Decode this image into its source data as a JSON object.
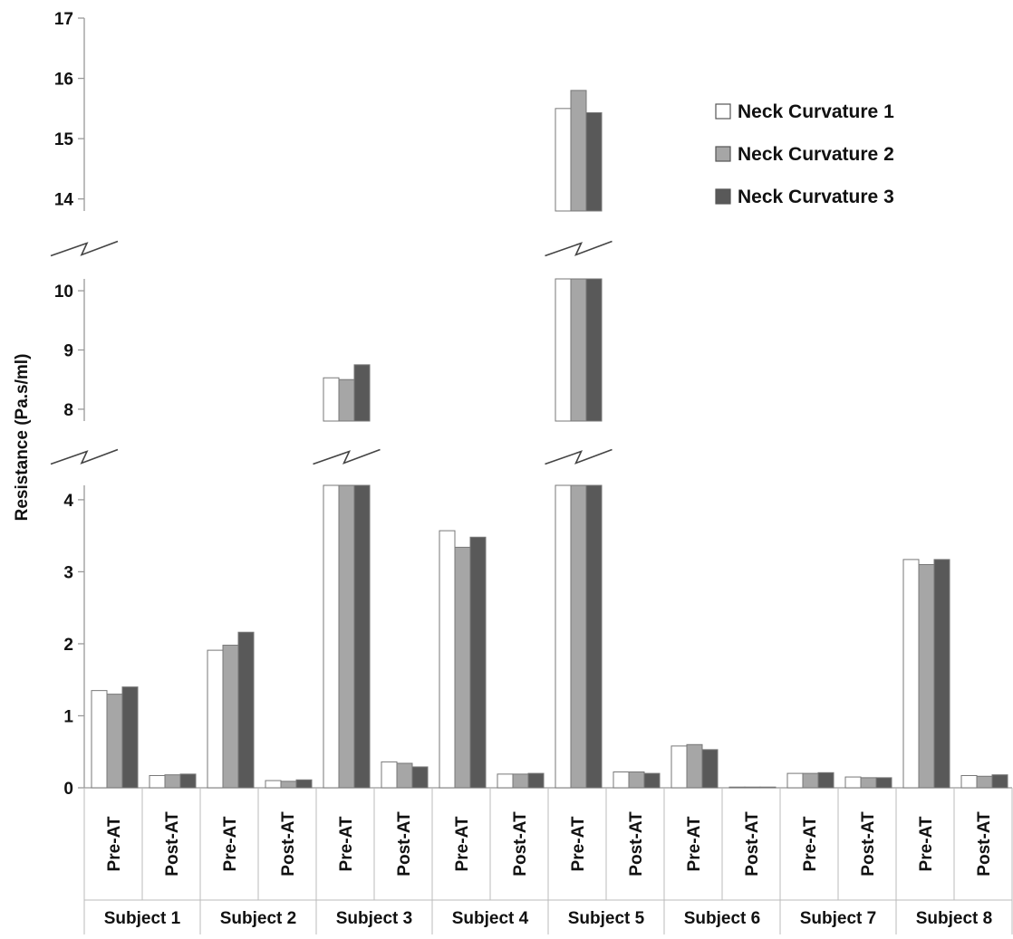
{
  "chart_data": {
    "type": "bar",
    "ylabel": "Resistance (Pa.s/ml)",
    "xlabel": "",
    "y_axis_broken": true,
    "y_segments": [
      {
        "range": [
          0,
          4.2
        ],
        "ticks": [
          "0",
          "1",
          "2",
          "3",
          "4"
        ]
      },
      {
        "range": [
          7.8,
          10.2
        ],
        "ticks": [
          "8",
          "9",
          "10"
        ]
      },
      {
        "range": [
          13.8,
          17
        ],
        "ticks": [
          "14",
          "15",
          "16",
          "17"
        ]
      }
    ],
    "groups": [
      "Subject 1",
      "Subject 2",
      "Subject 3",
      "Subject 4",
      "Subject 5",
      "Subject 6",
      "Subject 7",
      "Subject 8"
    ],
    "conditions": [
      "Pre-AT",
      "Post-AT"
    ],
    "categories": [
      "Subject 1 Pre-AT",
      "Subject 1 Post-AT",
      "Subject 2 Pre-AT",
      "Subject 2 Post-AT",
      "Subject 3 Pre-AT",
      "Subject 3 Post-AT",
      "Subject 4 Pre-AT",
      "Subject 4 Post-AT",
      "Subject 5 Pre-AT",
      "Subject 5 Post-AT",
      "Subject 6 Pre-AT",
      "Subject 6 Post-AT",
      "Subject 7 Pre-AT",
      "Subject 7 Post-AT",
      "Subject 8 Pre-AT",
      "Subject 8 Post-AT"
    ],
    "series": [
      {
        "name": "Neck Curvature 1",
        "color": "#ffffff",
        "values": [
          1.35,
          0.17,
          1.91,
          0.1,
          8.53,
          0.36,
          3.57,
          0.19,
          15.5,
          0.22,
          0.58,
          0.01,
          0.2,
          0.15,
          3.17,
          0.17
        ]
      },
      {
        "name": "Neck Curvature 2",
        "color": "#a6a6a6",
        "values": [
          1.3,
          0.18,
          1.98,
          0.09,
          8.5,
          0.34,
          3.34,
          0.19,
          15.8,
          0.22,
          0.6,
          0.01,
          0.2,
          0.14,
          3.1,
          0.16
        ]
      },
      {
        "name": "Neck Curvature 3",
        "color": "#595959",
        "values": [
          1.4,
          0.19,
          2.16,
          0.11,
          8.75,
          0.29,
          3.48,
          0.2,
          15.43,
          0.2,
          0.53,
          0.01,
          0.21,
          0.14,
          3.17,
          0.18
        ]
      }
    ],
    "legend_position": "top-right",
    "grid": false
  }
}
